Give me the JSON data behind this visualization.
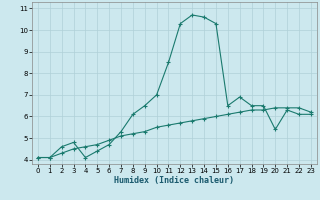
{
  "xlabel": "Humidex (Indice chaleur)",
  "background_color": "#cce8ee",
  "grid_color": "#b0d0d8",
  "line_color": "#1a7a6e",
  "x_min": 0,
  "x_max": 23,
  "y_min": 4,
  "y_max": 11,
  "line1_x": [
    0,
    1,
    2,
    3,
    4,
    5,
    6,
    7,
    8,
    9,
    10,
    11,
    12,
    13,
    14,
    15,
    16,
    17,
    18,
    19,
    20,
    21,
    22,
    23
  ],
  "line1_y": [
    4.1,
    4.1,
    4.6,
    4.8,
    4.1,
    4.4,
    4.7,
    5.3,
    6.1,
    6.5,
    7.0,
    8.5,
    10.3,
    10.7,
    10.6,
    10.3,
    6.5,
    6.9,
    6.5,
    6.5,
    5.4,
    6.3,
    6.1,
    6.1
  ],
  "line2_x": [
    0,
    1,
    2,
    3,
    4,
    5,
    6,
    7,
    8,
    9,
    10,
    11,
    12,
    13,
    14,
    15,
    16,
    17,
    18,
    19,
    20,
    21,
    22,
    23
  ],
  "line2_y": [
    4.1,
    4.1,
    4.3,
    4.5,
    4.6,
    4.7,
    4.9,
    5.1,
    5.2,
    5.3,
    5.5,
    5.6,
    5.7,
    5.8,
    5.9,
    6.0,
    6.1,
    6.2,
    6.3,
    6.3,
    6.4,
    6.4,
    6.4,
    6.2
  ]
}
